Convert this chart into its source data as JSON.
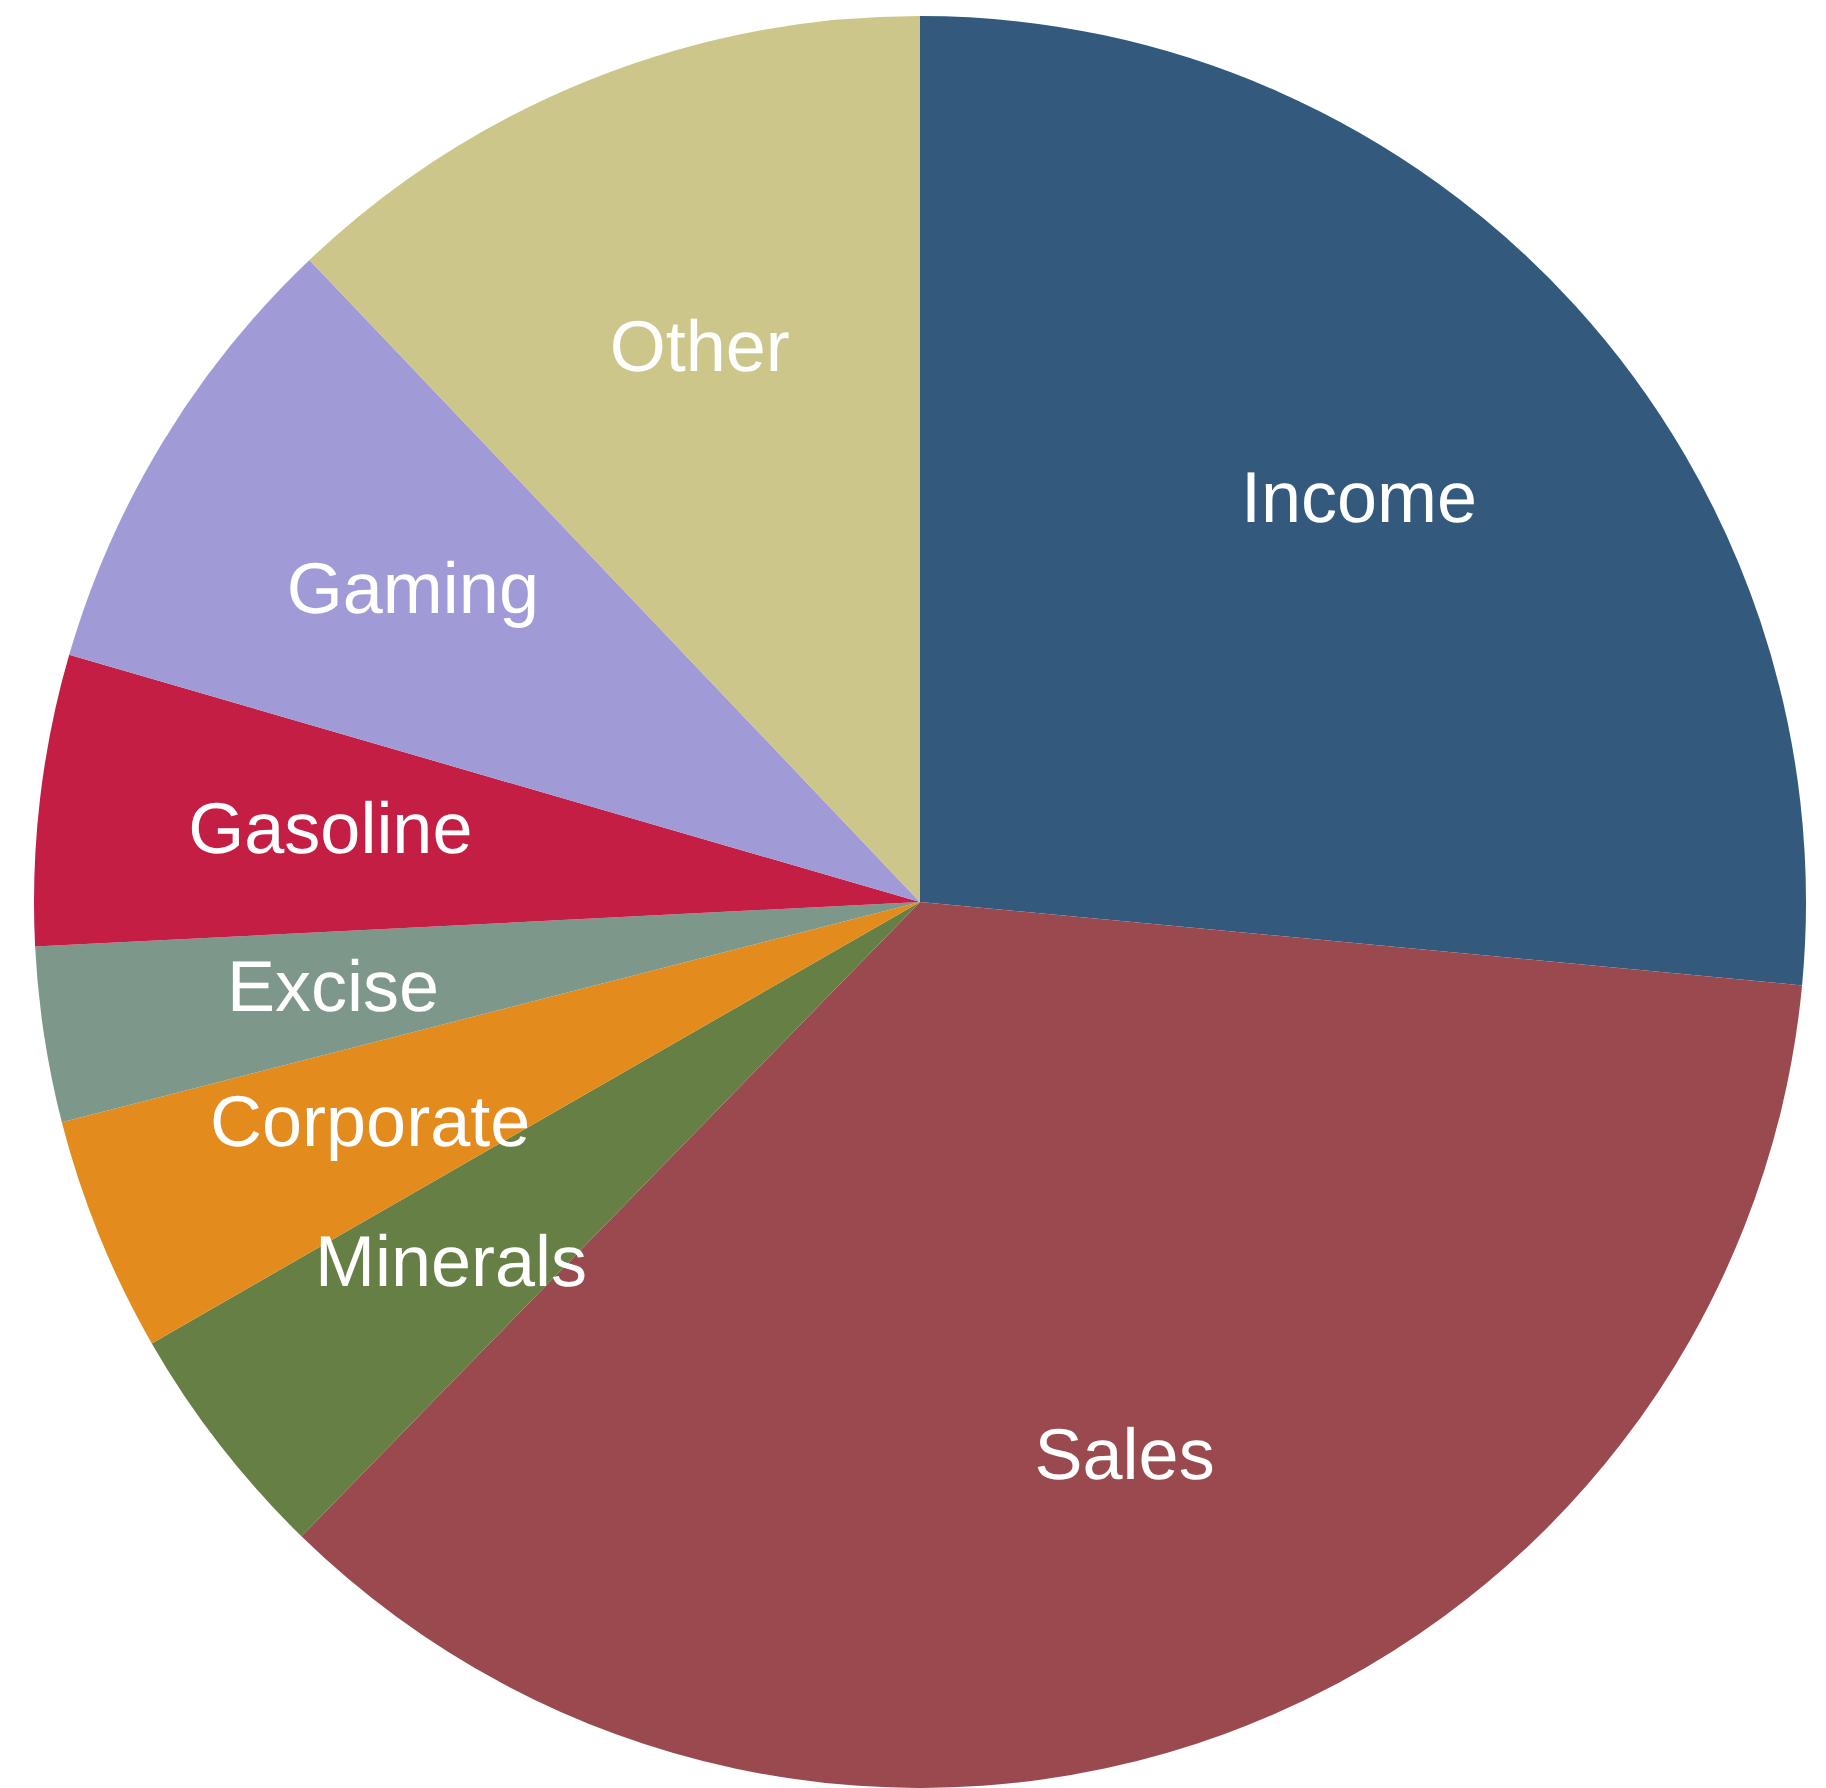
{
  "chart_data": {
    "type": "pie",
    "categories": [
      "Income",
      "Sales",
      "Minerals",
      "Corporate",
      "Excise",
      "Gasoline",
      "Gaming",
      "Other"
    ],
    "values": [
      26.5,
      35.8,
      4.4,
      4.3,
      3.2,
      5.3,
      8.4,
      12.1
    ],
    "colors": [
      "#335a7c",
      "#9a4a4f",
      "#667f45",
      "#e48b1e",
      "#7d978b",
      "#c41e45",
      "#a09ad6",
      "#cdc68b"
    ]
  }
}
